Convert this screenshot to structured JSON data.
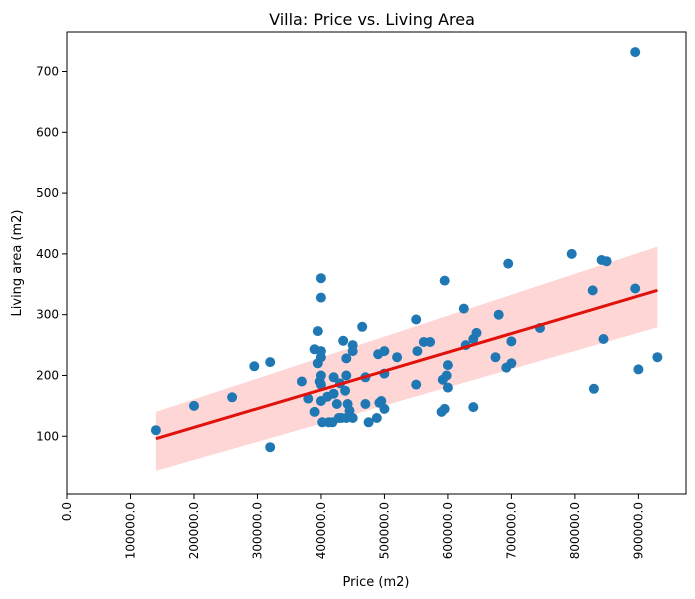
{
  "chart_data": {
    "type": "scatter",
    "title": "Villa: Price vs. Living Area",
    "xlabel": "Price (m2)",
    "ylabel": "Living area (m2)",
    "xlim": [
      0,
      975000
    ],
    "ylim": [
      5,
      765
    ],
    "x_ticks": [
      0,
      100000,
      200000,
      300000,
      400000,
      500000,
      600000,
      700000,
      800000,
      900000
    ],
    "x_tick_labels": [
      "0.0",
      "100000.0",
      "200000.0",
      "300000.0",
      "400000.0",
      "500000.0",
      "600000.0",
      "700000.0",
      "800000.0",
      "900000.0"
    ],
    "y_ticks": [
      100,
      200,
      300,
      400,
      500,
      600,
      700
    ],
    "y_tick_labels": [
      "100",
      "200",
      "300",
      "400",
      "500",
      "600",
      "700"
    ],
    "grid": false,
    "point_color": "#1f77b4",
    "regression": {
      "color": "#e0120c",
      "band_color": "#ffd6d6",
      "x": [
        140000,
        930000
      ],
      "y": [
        96,
        340
      ],
      "band_upper": [
        140,
        412
      ],
      "band_lower": [
        43,
        279
      ]
    },
    "points": [
      [
        140000,
        110
      ],
      [
        200000,
        150
      ],
      [
        260000,
        164
      ],
      [
        295000,
        215
      ],
      [
        320000,
        222
      ],
      [
        320000,
        82
      ],
      [
        370000,
        190
      ],
      [
        380000,
        162
      ],
      [
        390000,
        243
      ],
      [
        390000,
        140
      ],
      [
        395000,
        273
      ],
      [
        395000,
        220
      ],
      [
        398000,
        190
      ],
      [
        400000,
        185
      ],
      [
        400000,
        200
      ],
      [
        400000,
        230
      ],
      [
        400000,
        240
      ],
      [
        400000,
        360
      ],
      [
        400000,
        328
      ],
      [
        400000,
        158
      ],
      [
        402000,
        123
      ],
      [
        410000,
        165
      ],
      [
        412000,
        123
      ],
      [
        418000,
        123
      ],
      [
        420000,
        170
      ],
      [
        420000,
        197
      ],
      [
        425000,
        153
      ],
      [
        428000,
        130
      ],
      [
        430000,
        187
      ],
      [
        432000,
        130
      ],
      [
        435000,
        257
      ],
      [
        438000,
        175
      ],
      [
        440000,
        228
      ],
      [
        440000,
        200
      ],
      [
        440000,
        130
      ],
      [
        442000,
        153
      ],
      [
        445000,
        142
      ],
      [
        450000,
        250
      ],
      [
        450000,
        240
      ],
      [
        450000,
        130
      ],
      [
        465000,
        280
      ],
      [
        470000,
        153
      ],
      [
        470000,
        197
      ],
      [
        475000,
        123
      ],
      [
        488000,
        130
      ],
      [
        490000,
        235
      ],
      [
        492000,
        155
      ],
      [
        495000,
        158
      ],
      [
        500000,
        240
      ],
      [
        500000,
        203
      ],
      [
        500000,
        145
      ],
      [
        520000,
        230
      ],
      [
        550000,
        292
      ],
      [
        550000,
        185
      ],
      [
        552000,
        240
      ],
      [
        562000,
        255
      ],
      [
        572000,
        255
      ],
      [
        590000,
        140
      ],
      [
        592000,
        193
      ],
      [
        595000,
        145
      ],
      [
        595000,
        356
      ],
      [
        598000,
        200
      ],
      [
        600000,
        217
      ],
      [
        600000,
        180
      ],
      [
        625000,
        310
      ],
      [
        628000,
        250
      ],
      [
        640000,
        148
      ],
      [
        640000,
        260
      ],
      [
        645000,
        270
      ],
      [
        675000,
        230
      ],
      [
        680000,
        300
      ],
      [
        692000,
        213
      ],
      [
        695000,
        384
      ],
      [
        700000,
        220
      ],
      [
        700000,
        256
      ],
      [
        745000,
        278
      ],
      [
        795000,
        400
      ],
      [
        828000,
        340
      ],
      [
        830000,
        178
      ],
      [
        842000,
        390
      ],
      [
        845000,
        260
      ],
      [
        850000,
        388
      ],
      [
        895000,
        343
      ],
      [
        895000,
        732
      ],
      [
        900000,
        210
      ],
      [
        930000,
        230
      ]
    ]
  }
}
